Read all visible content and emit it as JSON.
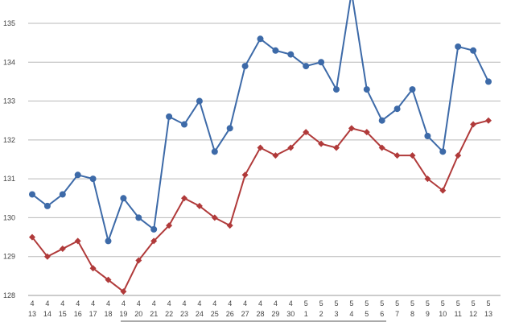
{
  "chart_data": {
    "type": "line",
    "x": [
      [
        "4",
        "13"
      ],
      [
        "4",
        "14"
      ],
      [
        "4",
        "15"
      ],
      [
        "4",
        "16"
      ],
      [
        "4",
        "17"
      ],
      [
        "4",
        "18"
      ],
      [
        "4",
        "19"
      ],
      [
        "4",
        "20"
      ],
      [
        "4",
        "21"
      ],
      [
        "4",
        "22"
      ],
      [
        "4",
        "23"
      ],
      [
        "4",
        "24"
      ],
      [
        "4",
        "25"
      ],
      [
        "4",
        "26"
      ],
      [
        "4",
        "27"
      ],
      [
        "4",
        "28"
      ],
      [
        "4",
        "29"
      ],
      [
        "4",
        "30"
      ],
      [
        "5",
        "1"
      ],
      [
        "5",
        "2"
      ],
      [
        "5",
        "3"
      ],
      [
        "5",
        "4"
      ],
      [
        "5",
        "5"
      ],
      [
        "5",
        "6"
      ],
      [
        "5",
        "7"
      ],
      [
        "5",
        "8"
      ],
      [
        "5",
        "9"
      ],
      [
        "5",
        "10"
      ],
      [
        "5",
        "11"
      ],
      [
        "5",
        "12"
      ],
      [
        "5",
        "13"
      ]
    ],
    "series": [
      {
        "color": "#3d6aa8",
        "marker": "circle",
        "values": [
          130.6,
          130.3,
          130.6,
          131.1,
          131.0,
          129.4,
          130.5,
          130.0,
          129.7,
          132.6,
          132.4,
          133.0,
          131.7,
          132.3,
          133.9,
          134.6,
          134.3,
          134.2,
          133.9,
          134.0,
          133.3,
          135.8,
          133.3,
          132.5,
          132.8,
          133.3,
          132.1,
          131.7,
          134.4,
          134.3,
          133.5
        ]
      },
      {
        "color": "#b03a3a",
        "marker": "diamond",
        "values": [
          129.5,
          129.0,
          129.2,
          129.4,
          128.7,
          128.4,
          128.1,
          128.9,
          129.4,
          129.8,
          130.5,
          130.3,
          130.0,
          129.8,
          131.1,
          131.8,
          131.6,
          131.8,
          132.2,
          131.9,
          131.8,
          132.3,
          132.2,
          131.8,
          131.6,
          131.6,
          131.0,
          130.7,
          131.6,
          132.4,
          132.5
        ]
      }
    ],
    "y_ticks": [
      "128",
      "129",
      "130",
      "131",
      "132",
      "133",
      "134",
      "135"
    ],
    "ylim": [
      128,
      135.6
    ],
    "grid": true,
    "legend": "none"
  }
}
